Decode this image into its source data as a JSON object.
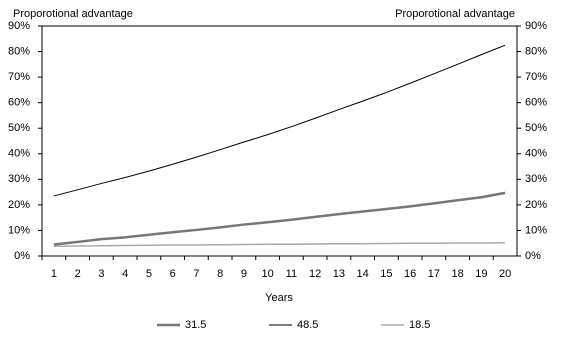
{
  "chart_data": {
    "type": "line",
    "y_label": "Proporotional advantage",
    "y2_label": "Proporotional advantage",
    "x_label": "Years",
    "categories": [
      1,
      2,
      3,
      4,
      5,
      6,
      7,
      8,
      9,
      10,
      11,
      12,
      13,
      14,
      15,
      16,
      17,
      18,
      19,
      20
    ],
    "ylim": [
      0,
      90
    ],
    "yticks": [
      {
        "value": 0,
        "label": "0%"
      },
      {
        "value": 10,
        "label": "10%"
      },
      {
        "value": 20,
        "label": "20%"
      },
      {
        "value": 30,
        "label": "30%"
      },
      {
        "value": 40,
        "label": "40%"
      },
      {
        "value": 50,
        "label": "50%"
      },
      {
        "value": 60,
        "label": "60%"
      },
      {
        "value": 70,
        "label": "70%"
      },
      {
        "value": 80,
        "label": "80%"
      },
      {
        "value": 90,
        "label": "90%"
      }
    ],
    "y2lim": [
      0,
      90
    ],
    "y2ticks": [
      {
        "value": 0,
        "label": "0%"
      },
      {
        "value": 10,
        "label": "10%"
      },
      {
        "value": 20,
        "label": "20%"
      },
      {
        "value": 30,
        "label": "30%"
      },
      {
        "value": 40,
        "label": "40%"
      },
      {
        "value": 50,
        "label": "50%"
      },
      {
        "value": 60,
        "label": "60%"
      },
      {
        "value": 70,
        "label": "70%"
      },
      {
        "value": 80,
        "label": "80%"
      },
      {
        "value": 90,
        "label": "90%"
      }
    ],
    "grid": false,
    "legend": "bottom",
    "series": [
      {
        "name": "31.5",
        "color": "#777777",
        "width": 2.5,
        "values": [
          4.5,
          5.5,
          6.6,
          7.3,
          8.3,
          9.3,
          10.2,
          11.2,
          12.3,
          13.2,
          14.2,
          15.3,
          16.4,
          17.4,
          18.4,
          19.4,
          20.6,
          21.8,
          23.0,
          24.7
        ]
      },
      {
        "name": "48.5",
        "color": "#000000",
        "width": 1,
        "values": [
          23.5,
          25.9,
          28.4,
          30.7,
          33.2,
          35.9,
          38.7,
          41.6,
          44.6,
          47.5,
          50.6,
          53.9,
          57.3,
          60.6,
          64.0,
          67.6,
          71.3,
          75.0,
          78.8,
          82.5
        ]
      },
      {
        "name": "18.5",
        "color": "#aaaaaa",
        "width": 1.5,
        "values": [
          3.8,
          3.9,
          4.0,
          4.1,
          4.2,
          4.3,
          4.3,
          4.4,
          4.5,
          4.6,
          4.6,
          4.7,
          4.8,
          4.8,
          4.9,
          5.0,
          5.0,
          5.1,
          5.1,
          5.2
        ]
      }
    ]
  }
}
